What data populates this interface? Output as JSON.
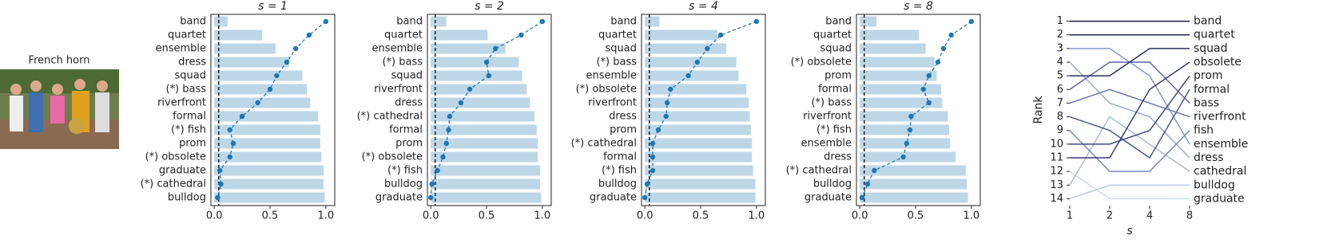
{
  "image": {
    "label": "French horn"
  },
  "chart_data": [
    {
      "type": "bar-dot",
      "title": "s = 1",
      "categories": [
        "band",
        "quartet",
        "ensemble",
        "dress",
        "squad",
        "(*) bass",
        "riverfront",
        "formal",
        "(*) fish",
        "prom",
        "(*) obsolete",
        "graduate",
        "(*) cathedral",
        "bulldog"
      ],
      "series": [
        {
          "color": "#bdd7e7",
          "values": [
            0.12,
            0.43,
            0.55,
            0.67,
            0.79,
            0.83,
            0.86,
            0.93,
            0.95,
            0.95,
            0.96,
            0.98,
            0.98,
            0.99
          ]
        },
        {
          "color": "#1f77b4",
          "values": [
            1.0,
            0.85,
            0.73,
            0.65,
            0.56,
            0.5,
            0.39,
            0.25,
            0.14,
            0.17,
            0.14,
            0.05,
            0.06,
            0.03
          ]
        }
      ],
      "xlim": [
        -0.03,
        1.08
      ],
      "xticks": [
        {
          "value": 0,
          "label": "0.0"
        },
        0.5,
        {
          "value": 1,
          "label": "1.0"
        }
      ],
      "vline": 0.04
    },
    {
      "type": "bar-dot",
      "title": "s = 2",
      "categories": [
        "band",
        "quartet",
        "ensemble",
        "(*) bass",
        "squad",
        "riverfront",
        "dress",
        "(*) cathedral",
        "formal",
        "prom",
        "(*) obsolete",
        "(*) fish",
        "bulldog",
        "graduate"
      ],
      "series": [
        {
          "color": "#bdd7e7",
          "values": [
            0.14,
            0.51,
            0.67,
            0.79,
            0.82,
            0.86,
            0.89,
            0.93,
            0.95,
            0.96,
            0.96,
            0.98,
            0.98,
            0.99
          ]
        },
        {
          "color": "#1f77b4",
          "values": [
            1.0,
            0.81,
            0.58,
            0.5,
            0.52,
            0.35,
            0.27,
            0.17,
            0.16,
            0.14,
            0.11,
            0.06,
            0.01,
            0.0
          ]
        }
      ],
      "xlim": [
        -0.03,
        1.08
      ],
      "xticks": [
        {
          "value": 0,
          "label": "0.0"
        },
        0.5,
        {
          "value": 1,
          "label": "1.0"
        }
      ],
      "vline": 0.04
    },
    {
      "type": "bar-dot",
      "title": "s = 4",
      "categories": [
        "band",
        "quartet",
        "squad",
        "(*) bass",
        "ensemble",
        "(*) obsolete",
        "riverfront",
        "dress",
        "prom",
        "(*) cathedral",
        "formal",
        "(*) fish",
        "bulldog",
        "graduate"
      ],
      "series": [
        {
          "color": "#bdd7e7",
          "values": [
            0.13,
            0.65,
            0.73,
            0.82,
            0.84,
            0.91,
            0.93,
            0.94,
            0.95,
            0.96,
            0.96,
            0.97,
            0.99,
            0.99
          ]
        },
        {
          "color": "#1f77b4",
          "values": [
            1.0,
            0.68,
            0.56,
            0.47,
            0.39,
            0.23,
            0.2,
            0.19,
            0.12,
            0.07,
            0.07,
            0.07,
            0.02,
            0.0
          ]
        }
      ],
      "xlim": [
        -0.03,
        1.08
      ],
      "xticks": [
        {
          "value": 0,
          "label": "0.0"
        },
        0.5,
        {
          "value": 1,
          "label": "1.0"
        }
      ],
      "vline": 0.04
    },
    {
      "type": "bar-dot",
      "title": "s = 8",
      "categories": [
        "band",
        "quartet",
        "squad",
        "(*) obsolete",
        "prom",
        "formal",
        "(*) bass",
        "riverfront",
        "(*) fish",
        "ensemble",
        "dress",
        "(*) cathedral",
        "bulldog",
        "graduate"
      ],
      "series": [
        {
          "color": "#bdd7e7",
          "values": [
            0.15,
            0.53,
            0.59,
            0.67,
            0.69,
            0.73,
            0.74,
            0.79,
            0.8,
            0.81,
            0.86,
            0.95,
            0.96,
            0.97
          ]
        },
        {
          "color": "#1f77b4",
          "values": [
            1.0,
            0.82,
            0.75,
            0.7,
            0.62,
            0.57,
            0.62,
            0.46,
            0.45,
            0.42,
            0.39,
            0.13,
            0.07,
            0.02
          ]
        }
      ],
      "xlim": [
        -0.03,
        1.08
      ],
      "xticks": [
        {
          "value": 0,
          "label": "0.0"
        },
        0.5,
        {
          "value": 1,
          "label": "1.0"
        }
      ],
      "vline": 0.04
    },
    {
      "type": "bump",
      "ylabel": "Rank",
      "xlabel": "s",
      "categories": [
        "1",
        "2",
        "4",
        "8"
      ],
      "ylim": [
        14.5,
        0.5
      ],
      "yticks": [
        1,
        2,
        3,
        4,
        5,
        6,
        7,
        8,
        9,
        10,
        11,
        12,
        13,
        14
      ],
      "series": [
        {
          "name": "band",
          "color": "#1b1f3f",
          "values": [
            1,
            1,
            1,
            1
          ]
        },
        {
          "name": "quartet",
          "color": "#21264d",
          "values": [
            2,
            2,
            2,
            2
          ]
        },
        {
          "name": "squad",
          "color": "#2b3160",
          "values": [
            5,
            5,
            3,
            3
          ]
        },
        {
          "name": "obsolete",
          "color": "#363d72",
          "values": [
            11,
            11,
            6,
            4
          ]
        },
        {
          "name": "prom",
          "color": "#414a84",
          "values": [
            10,
            10,
            9,
            5
          ]
        },
        {
          "name": "formal",
          "color": "#4d5894",
          "values": [
            8,
            9,
            11,
            6
          ]
        },
        {
          "name": "bass",
          "color": "#5a67a4",
          "values": [
            6,
            4,
            4,
            7
          ]
        },
        {
          "name": "riverfront",
          "color": "#6777b2",
          "values": [
            7,
            6,
            7,
            8
          ]
        },
        {
          "name": "fish",
          "color": "#7688bf",
          "values": [
            9,
            12,
            12,
            9
          ]
        },
        {
          "name": "ensemble",
          "color": "#8699cb",
          "values": [
            3,
            3,
            5,
            10
          ]
        },
        {
          "name": "dress",
          "color": "#97aad6",
          "values": [
            4,
            7,
            8,
            11
          ]
        },
        {
          "name": "cathedral",
          "color": "#a8bbe0",
          "values": [
            13,
            8,
            10,
            12
          ]
        },
        {
          "name": "bulldog",
          "color": "#bacbe9",
          "values": [
            14,
            13,
            13,
            13
          ]
        },
        {
          "name": "graduate",
          "color": "#cddbf1",
          "values": [
            12,
            14,
            14,
            14
          ]
        }
      ]
    }
  ]
}
